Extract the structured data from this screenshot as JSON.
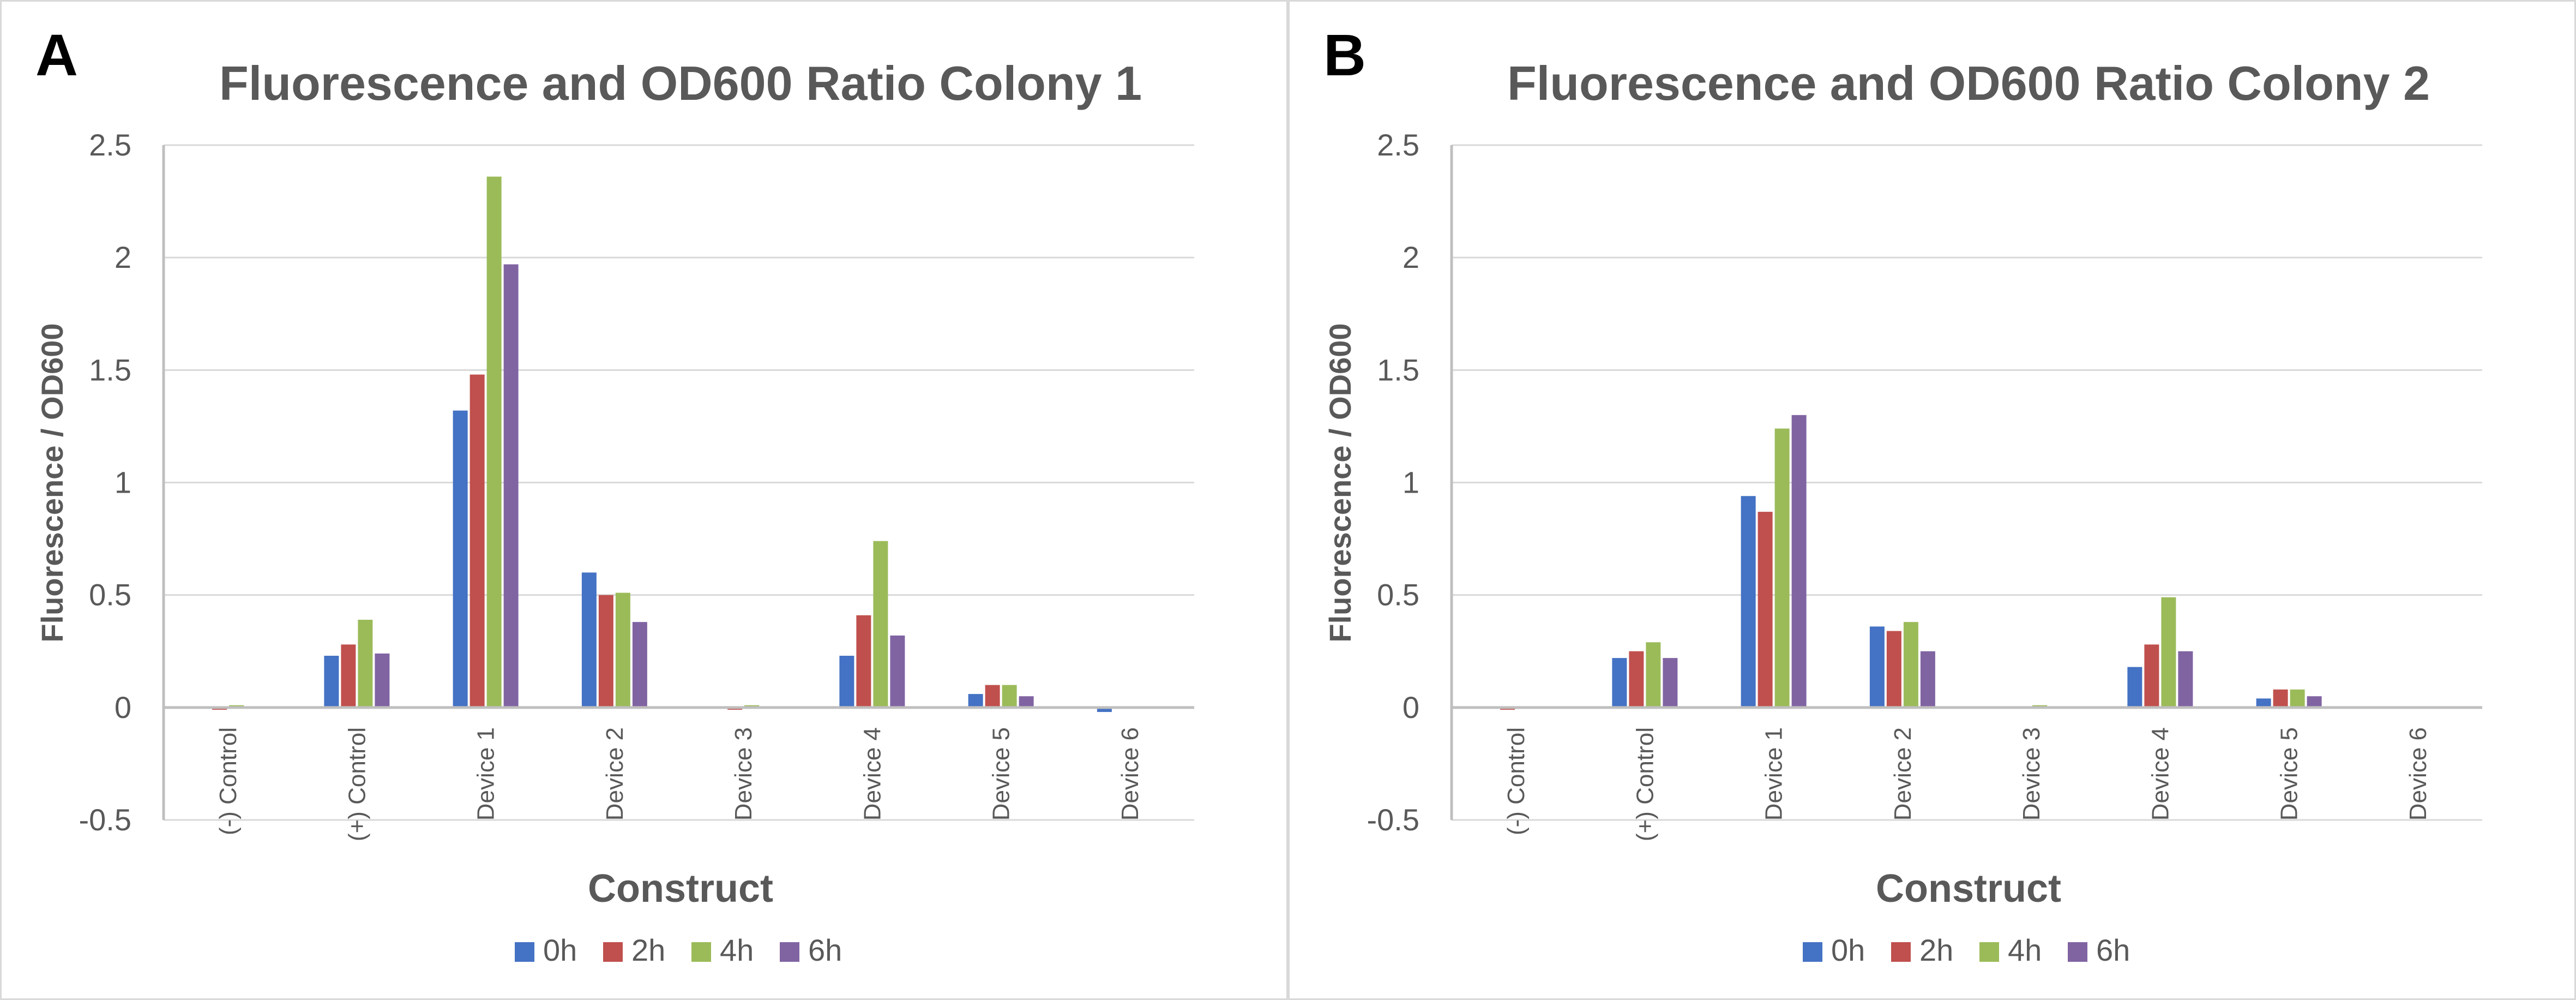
{
  "panels": [
    {
      "letter": "A"
    },
    {
      "letter": "B"
    }
  ],
  "colors": {
    "0h": "#4472c4",
    "2h": "#c0504d",
    "4h": "#9bbb59",
    "6h": "#8064a2",
    "gridline": "#d9d9d9",
    "axis": "#bfbfbf",
    "text": "#595959"
  },
  "chart_data": [
    {
      "type": "bar",
      "title": "Fluorescence and OD600 Ratio  Colony 1",
      "xlabel": "Construct",
      "ylabel": "Fluorescence / OD600",
      "ylim": [
        -0.5,
        2.5
      ],
      "yticks": [
        "2.5",
        "2",
        "1.5",
        "1",
        "0.5",
        "0",
        "-0.5"
      ],
      "grid": true,
      "legend_position": "bottom",
      "categories": [
        "(-) Control",
        "(+) Control",
        "Device 1",
        "Device 2",
        "Device 3",
        "Device 4",
        "Device 5",
        "Device 6"
      ],
      "series": [
        {
          "name": "0h",
          "values": [
            0.0,
            0.23,
            1.32,
            0.6,
            0.0,
            0.23,
            0.06,
            -0.02
          ]
        },
        {
          "name": "2h",
          "values": [
            -0.01,
            0.28,
            1.48,
            0.5,
            -0.01,
            0.41,
            0.1,
            0.0
          ]
        },
        {
          "name": "4h",
          "values": [
            0.01,
            0.39,
            2.36,
            0.51,
            0.01,
            0.74,
            0.1,
            0.0
          ]
        },
        {
          "name": "6h",
          "values": [
            0.0,
            0.24,
            1.97,
            0.38,
            0.0,
            0.32,
            0.05,
            0.0
          ]
        }
      ]
    },
    {
      "type": "bar",
      "title": "Fluorescence and OD600 Ratio Colony 2",
      "xlabel": "Construct",
      "ylabel": "Fluorescence / OD600",
      "ylim": [
        -0.5,
        2.5
      ],
      "yticks": [
        "2.5",
        "2",
        "1.5",
        "1",
        "0.5",
        "0",
        "-0.5"
      ],
      "grid": true,
      "legend_position": "bottom",
      "categories": [
        "(-) Control",
        "(+) Control",
        "Device 1",
        "Device 2",
        "Device 3",
        "Device 4",
        "Device 5",
        "Device 6"
      ],
      "series": [
        {
          "name": "0h",
          "values": [
            0.0,
            0.22,
            0.94,
            0.36,
            0.0,
            0.18,
            0.04,
            0.0
          ]
        },
        {
          "name": "2h",
          "values": [
            -0.01,
            0.25,
            0.87,
            0.34,
            0.0,
            0.28,
            0.08,
            0.0
          ]
        },
        {
          "name": "4h",
          "values": [
            0.0,
            0.29,
            1.24,
            0.38,
            0.01,
            0.49,
            0.08,
            0.0
          ]
        },
        {
          "name": "6h",
          "values": [
            0.0,
            0.22,
            1.3,
            0.25,
            0.0,
            0.25,
            0.05,
            0.0
          ]
        }
      ]
    }
  ]
}
